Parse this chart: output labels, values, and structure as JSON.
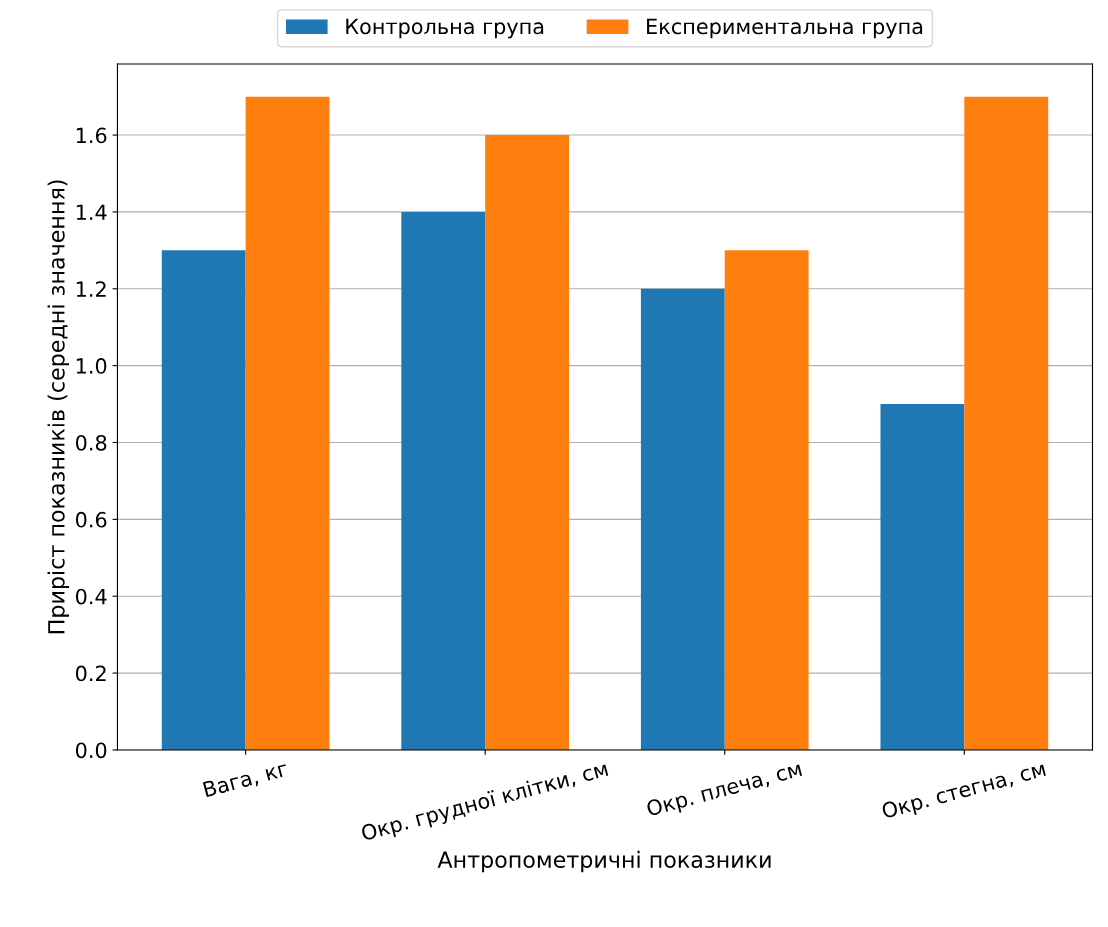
{
  "chart_data": {
    "type": "bar",
    "xlabel": "Антропометричні показники",
    "ylabel": "Приріст показників (середні значення)",
    "categories": [
      "Вага, кг",
      "Окр. грудної клітки, см",
      "Окр. плеча, см",
      "Окр. стегна, см"
    ],
    "series": [
      {
        "name": "Контрольна група",
        "color": "#1f77b4",
        "values": [
          1.3,
          1.4,
          1.2,
          0.9
        ]
      },
      {
        "name": "Експериментальна група",
        "color": "#ff7f0e",
        "values": [
          1.7,
          1.6,
          1.3,
          1.7
        ]
      }
    ],
    "ylim": [
      0,
      1.785
    ],
    "yticks": [
      {
        "value": 0,
        "label": "0.0"
      },
      {
        "value": 0.2,
        "label": "0.2"
      },
      {
        "value": 0.4,
        "label": "0.4"
      },
      {
        "value": 0.6,
        "label": "0.6"
      },
      {
        "value": 0.8,
        "label": "0.8"
      },
      {
        "value": 1.0,
        "label": "1.0"
      },
      {
        "value": 1.2,
        "label": "1.2"
      },
      {
        "value": 1.4,
        "label": "1.4"
      },
      {
        "value": 1.6,
        "label": "1.6"
      }
    ],
    "grid": "y",
    "legend": "top"
  }
}
